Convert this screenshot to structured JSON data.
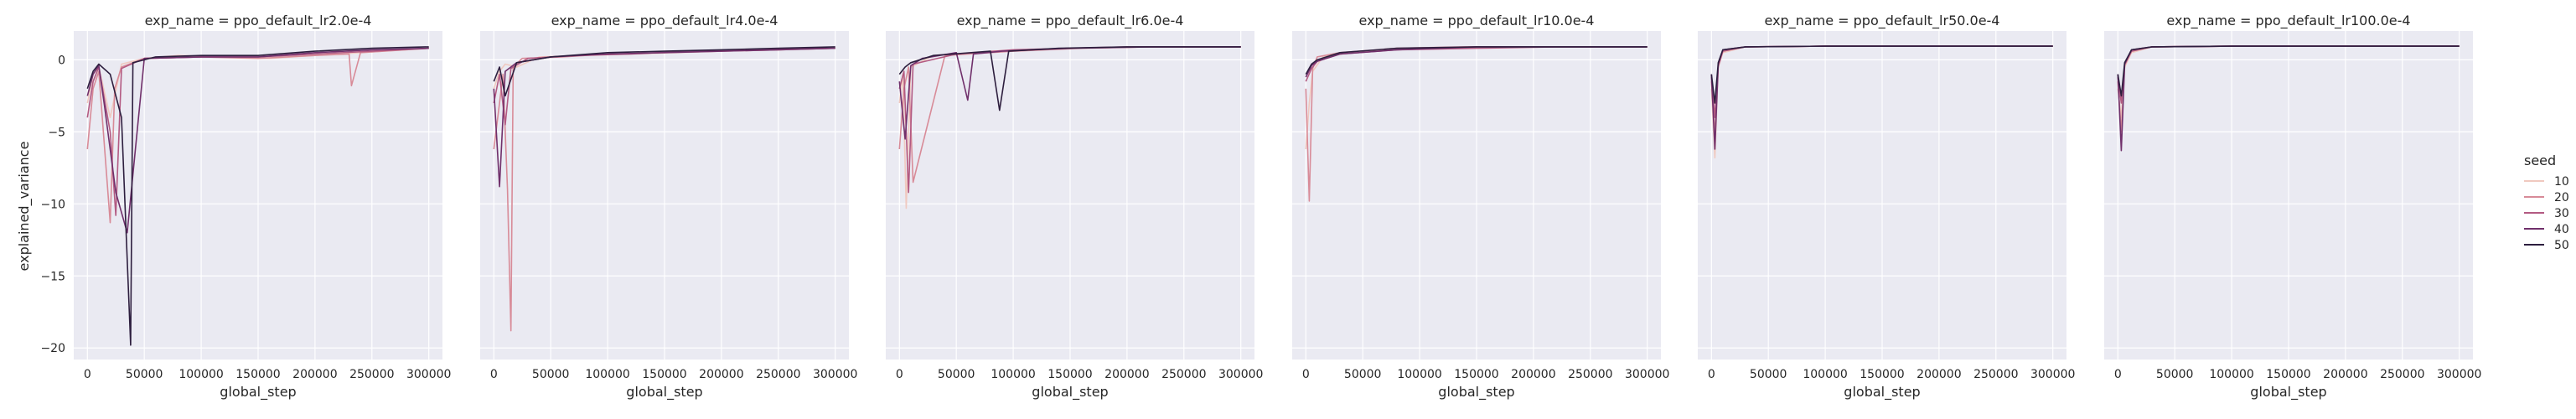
{
  "figure": {
    "ylabel": "explained_variance",
    "xlabel": "global_step",
    "legend_title": "seed"
  },
  "legend": [
    {
      "name": "10",
      "color": "#f0c9c0"
    },
    {
      "name": "20",
      "color": "#d88b98"
    },
    {
      "name": "30",
      "color": "#b35a82"
    },
    {
      "name": "40",
      "color": "#70306b"
    },
    {
      "name": "50",
      "color": "#2d1e3e"
    }
  ],
  "chart_data": [
    {
      "type": "line",
      "title": "exp_name = ppo_default_lr2.0e-4",
      "xlabel": "global_step",
      "ylabel": "explained_variance",
      "xlim": [
        -12000,
        312000
      ],
      "ylim": [
        -20.8,
        2.0
      ],
      "xticks": [
        0,
        50000,
        100000,
        150000,
        200000,
        250000,
        300000
      ],
      "xtick_labels": [
        "0",
        "50000",
        "100000",
        "150000",
        "200000",
        "250000",
        "300000"
      ],
      "yticks": [
        -20,
        -15,
        -10,
        -5,
        0
      ],
      "ytick_labels": [
        "−20",
        "−15",
        "−10",
        "−5",
        "0"
      ],
      "grid": true,
      "legend_position": "right",
      "series": [
        {
          "name": "10",
          "x": [
            0,
            5000,
            10000,
            20000,
            30000,
            50000,
            80000,
            120000,
            160000,
            200000,
            240000,
            300000
          ],
          "y": [
            -3.0,
            -1.0,
            -0.5,
            -4.0,
            -0.3,
            0.1,
            0.3,
            0.2,
            0.1,
            0.3,
            0.5,
            0.8
          ]
        },
        {
          "name": "20",
          "x": [
            0,
            5000,
            10000,
            20000,
            24000,
            30000,
            50000,
            100000,
            150000,
            200000,
            230000,
            232000,
            240000,
            300000
          ],
          "y": [
            -6.2,
            -2.0,
            -0.8,
            -11.3,
            -2.0,
            -0.5,
            0.1,
            0.2,
            0.1,
            0.3,
            0.4,
            -1.8,
            0.5,
            0.8
          ]
        },
        {
          "name": "30",
          "x": [
            0,
            5000,
            10000,
            20000,
            25000,
            30000,
            50000,
            100000,
            150000,
            200000,
            250000,
            300000
          ],
          "y": [
            -4.0,
            -1.5,
            -0.5,
            -5.0,
            -10.8,
            -0.6,
            0.1,
            0.2,
            0.2,
            0.4,
            0.6,
            0.8
          ]
        },
        {
          "name": "40",
          "x": [
            0,
            5000,
            10000,
            15000,
            25000,
            35000,
            50000,
            100000,
            150000,
            200000,
            250000,
            300000
          ],
          "y": [
            -2.5,
            -1.0,
            -0.4,
            -3.2,
            -9.2,
            -12.0,
            0.1,
            0.2,
            0.2,
            0.5,
            0.7,
            0.8
          ]
        },
        {
          "name": "50",
          "x": [
            0,
            5000,
            10000,
            20000,
            30000,
            38000,
            40000,
            60000,
            100000,
            150000,
            200000,
            250000,
            300000
          ],
          "y": [
            -2.0,
            -0.8,
            -0.3,
            -1.0,
            -4.0,
            -19.8,
            -0.2,
            0.2,
            0.3,
            0.3,
            0.6,
            0.8,
            0.9
          ]
        }
      ]
    },
    {
      "type": "line",
      "title": "exp_name = ppo_default_lr4.0e-4",
      "xlabel": "global_step",
      "ylabel": "",
      "xlim": [
        -12000,
        312000
      ],
      "ylim": [
        -20.8,
        2.0
      ],
      "xticks": [
        0,
        50000,
        100000,
        150000,
        200000,
        250000,
        300000
      ],
      "xtick_labels": [
        "0",
        "50000",
        "100000",
        "150000",
        "200000",
        "250000",
        "300000"
      ],
      "yticks": [
        -20,
        -15,
        -10,
        -5,
        0
      ],
      "ytick_labels": [],
      "grid": true,
      "legend_position": "right",
      "series": [
        {
          "name": "10",
          "x": [
            0,
            5000,
            10000,
            20000,
            40000,
            80000,
            120000,
            160000,
            200000,
            250000,
            300000
          ],
          "y": [
            -2.0,
            -0.8,
            -0.3,
            -0.5,
            0.2,
            0.3,
            0.4,
            0.5,
            0.6,
            0.7,
            0.8
          ]
        },
        {
          "name": "20",
          "x": [
            0,
            5000,
            8000,
            12000,
            15000,
            17000,
            25000,
            60000,
            100000,
            150000,
            200000,
            250000,
            300000
          ],
          "y": [
            -6.2,
            -3.0,
            -1.0,
            -9.0,
            -18.8,
            -0.5,
            0.1,
            0.2,
            0.4,
            0.5,
            0.6,
            0.7,
            0.8
          ]
        },
        {
          "name": "30",
          "x": [
            0,
            5000,
            10000,
            15000,
            30000,
            70000,
            120000,
            170000,
            220000,
            300000
          ],
          "y": [
            -3.0,
            -1.0,
            -4.5,
            -0.6,
            0.1,
            0.3,
            0.4,
            0.6,
            0.7,
            0.8
          ]
        },
        {
          "name": "40",
          "x": [
            0,
            5000,
            10000,
            20000,
            50000,
            100000,
            150000,
            200000,
            250000,
            300000
          ],
          "y": [
            -2.0,
            -8.8,
            -0.8,
            -0.2,
            0.2,
            0.4,
            0.5,
            0.6,
            0.7,
            0.8
          ]
        },
        {
          "name": "50",
          "x": [
            0,
            5000,
            10000,
            20000,
            50000,
            100000,
            150000,
            200000,
            250000,
            300000
          ],
          "y": [
            -1.5,
            -0.5,
            -2.5,
            -0.2,
            0.2,
            0.5,
            0.6,
            0.7,
            0.8,
            0.9
          ]
        }
      ]
    },
    {
      "type": "line",
      "title": "exp_name = ppo_default_lr6.0e-4",
      "xlabel": "global_step",
      "ylabel": "",
      "xlim": [
        -12000,
        312000
      ],
      "ylim": [
        -20.8,
        2.0
      ],
      "xticks": [
        0,
        50000,
        100000,
        150000,
        200000,
        250000,
        300000
      ],
      "xtick_labels": [
        "0",
        "50000",
        "100000",
        "150000",
        "200000",
        "250000",
        "300000"
      ],
      "yticks": [
        -20,
        -15,
        -10,
        -5,
        0
      ],
      "ytick_labels": [],
      "grid": true,
      "legend_position": "right",
      "series": [
        {
          "name": "10",
          "x": [
            0,
            3000,
            6000,
            10000,
            30000,
            80000,
            150000,
            220000,
            300000
          ],
          "y": [
            -3.0,
            -1.0,
            -10.3,
            -0.5,
            0.3,
            0.6,
            0.8,
            0.9,
            0.9
          ]
        },
        {
          "name": "20",
          "x": [
            0,
            4000,
            8000,
            12000,
            40000,
            100000,
            160000,
            220000,
            300000
          ],
          "y": [
            -6.2,
            -2.0,
            -0.5,
            -8.5,
            0.3,
            0.6,
            0.8,
            0.9,
            0.9
          ]
        },
        {
          "name": "30",
          "x": [
            0,
            4000,
            8000,
            12000,
            50000,
            100000,
            150000,
            200000,
            300000
          ],
          "y": [
            -2.0,
            -0.8,
            -9.2,
            -0.3,
            0.4,
            0.7,
            0.8,
            0.9,
            0.9
          ]
        },
        {
          "name": "40",
          "x": [
            0,
            5000,
            10000,
            20000,
            50000,
            60000,
            65000,
            90000,
            150000,
            220000,
            300000
          ],
          "y": [
            -1.5,
            -5.5,
            -0.4,
            0.1,
            0.5,
            -2.8,
            0.4,
            0.6,
            0.8,
            0.9,
            0.9
          ]
        },
        {
          "name": "50",
          "x": [
            0,
            5000,
            10000,
            30000,
            80000,
            88000,
            96000,
            140000,
            200000,
            300000
          ],
          "y": [
            -1.0,
            -0.5,
            -0.2,
            0.3,
            0.6,
            -3.5,
            0.6,
            0.8,
            0.9,
            0.9
          ]
        }
      ]
    },
    {
      "type": "line",
      "title": "exp_name = ppo_default_lr10.0e-4",
      "xlabel": "global_step",
      "ylabel": "",
      "xlim": [
        -12000,
        312000
      ],
      "ylim": [
        -20.8,
        2.0
      ],
      "xticks": [
        0,
        50000,
        100000,
        150000,
        200000,
        250000,
        300000
      ],
      "xtick_labels": [
        "0",
        "50000",
        "100000",
        "150000",
        "200000",
        "250000",
        "300000"
      ],
      "yticks": [
        -20,
        -15,
        -10,
        -5,
        0
      ],
      "ytick_labels": [],
      "grid": true,
      "legend_position": "right",
      "series": [
        {
          "name": "10",
          "x": [
            0,
            3000,
            6000,
            15000,
            40000,
            100000,
            160000,
            220000,
            300000
          ],
          "y": [
            -6.2,
            -3.0,
            -0.8,
            0.2,
            0.5,
            0.8,
            0.9,
            0.9,
            0.9
          ]
        },
        {
          "name": "20",
          "x": [
            0,
            3000,
            6000,
            10000,
            30000,
            80000,
            140000,
            200000,
            300000
          ],
          "y": [
            -2.0,
            -9.8,
            -0.6,
            0.2,
            0.5,
            0.8,
            0.9,
            0.9,
            0.9
          ]
        },
        {
          "name": "30",
          "x": [
            0,
            5000,
            10000,
            30000,
            80000,
            150000,
            220000,
            300000
          ],
          "y": [
            -1.5,
            -0.6,
            -0.1,
            0.4,
            0.7,
            0.8,
            0.9,
            0.9
          ]
        },
        {
          "name": "40",
          "x": [
            0,
            5000,
            10000,
            30000,
            80000,
            150000,
            220000,
            300000
          ],
          "y": [
            -1.2,
            -0.4,
            -0.1,
            0.4,
            0.7,
            0.9,
            0.9,
            0.9
          ]
        },
        {
          "name": "50",
          "x": [
            0,
            5000,
            10000,
            30000,
            80000,
            150000,
            220000,
            300000
          ],
          "y": [
            -1.0,
            -0.3,
            0.0,
            0.5,
            0.8,
            0.9,
            0.9,
            0.9
          ]
        }
      ]
    },
    {
      "type": "line",
      "title": "exp_name = ppo_default_lr50.0e-4",
      "xlabel": "global_step",
      "ylabel": "",
      "xlim": [
        -12000,
        312000
      ],
      "ylim": [
        -20.8,
        2.0
      ],
      "xticks": [
        0,
        50000,
        100000,
        150000,
        200000,
        250000,
        300000
      ],
      "xtick_labels": [
        "0",
        "50000",
        "100000",
        "150000",
        "200000",
        "250000",
        "300000"
      ],
      "yticks": [
        -20,
        -15,
        -10,
        -5,
        0
      ],
      "ytick_labels": [],
      "grid": true,
      "legend_position": "right",
      "series": [
        {
          "name": "10",
          "x": [
            0,
            3000,
            6000,
            10000,
            30000,
            100000,
            200000,
            300000
          ],
          "y": [
            -2.0,
            -6.8,
            -0.5,
            0.5,
            0.9,
            0.95,
            0.95,
            0.95
          ]
        },
        {
          "name": "20",
          "x": [
            0,
            3000,
            6000,
            10000,
            30000,
            100000,
            200000,
            300000
          ],
          "y": [
            -1.5,
            -5.2,
            -0.5,
            0.6,
            0.9,
            0.95,
            0.95,
            0.95
          ]
        },
        {
          "name": "30",
          "x": [
            0,
            3000,
            6000,
            10000,
            30000,
            100000,
            200000,
            300000
          ],
          "y": [
            -1.2,
            -4.0,
            -0.4,
            0.6,
            0.9,
            0.95,
            0.95,
            0.95
          ]
        },
        {
          "name": "40",
          "x": [
            0,
            3000,
            6000,
            10000,
            30000,
            100000,
            200000,
            300000
          ],
          "y": [
            -1.0,
            -6.2,
            -0.3,
            0.7,
            0.9,
            0.95,
            0.95,
            0.95
          ]
        },
        {
          "name": "50",
          "x": [
            0,
            3000,
            6000,
            10000,
            30000,
            100000,
            200000,
            300000
          ],
          "y": [
            -1.0,
            -3.0,
            -0.2,
            0.7,
            0.9,
            0.95,
            0.95,
            0.95
          ]
        }
      ]
    },
    {
      "type": "line",
      "title": "exp_name = ppo_default_lr100.0e-4",
      "xlabel": "global_step",
      "ylabel": "",
      "xlim": [
        -12000,
        312000
      ],
      "ylim": [
        -20.8,
        2.0
      ],
      "xticks": [
        0,
        50000,
        100000,
        150000,
        200000,
        250000,
        300000
      ],
      "xtick_labels": [
        "0",
        "50000",
        "100000",
        "150000",
        "200000",
        "250000",
        "300000"
      ],
      "yticks": [
        -20,
        -15,
        -10,
        -5,
        0
      ],
      "ytick_labels": [],
      "grid": true,
      "legend_position": "right",
      "series": [
        {
          "name": "10",
          "x": [
            0,
            3000,
            6000,
            12000,
            30000,
            100000,
            200000,
            300000
          ],
          "y": [
            -2.0,
            -4.0,
            -0.5,
            0.5,
            0.9,
            0.95,
            0.95,
            0.95
          ]
        },
        {
          "name": "20",
          "x": [
            0,
            3000,
            6000,
            12000,
            30000,
            100000,
            200000,
            300000
          ],
          "y": [
            -1.5,
            -5.0,
            -0.4,
            0.6,
            0.9,
            0.95,
            0.95,
            0.95
          ]
        },
        {
          "name": "30",
          "x": [
            0,
            3000,
            6000,
            12000,
            30000,
            100000,
            200000,
            300000
          ],
          "y": [
            -1.2,
            -3.0,
            -0.3,
            0.6,
            0.9,
            0.95,
            0.95,
            0.95
          ]
        },
        {
          "name": "40",
          "x": [
            0,
            3000,
            6000,
            12000,
            30000,
            100000,
            200000,
            300000
          ],
          "y": [
            -1.0,
            -6.3,
            -0.3,
            0.7,
            0.9,
            0.95,
            0.95,
            0.95
          ]
        },
        {
          "name": "50",
          "x": [
            0,
            3000,
            6000,
            12000,
            30000,
            100000,
            200000,
            300000
          ],
          "y": [
            -1.0,
            -2.5,
            -0.2,
            0.7,
            0.9,
            0.95,
            0.95,
            0.95
          ]
        }
      ]
    }
  ]
}
